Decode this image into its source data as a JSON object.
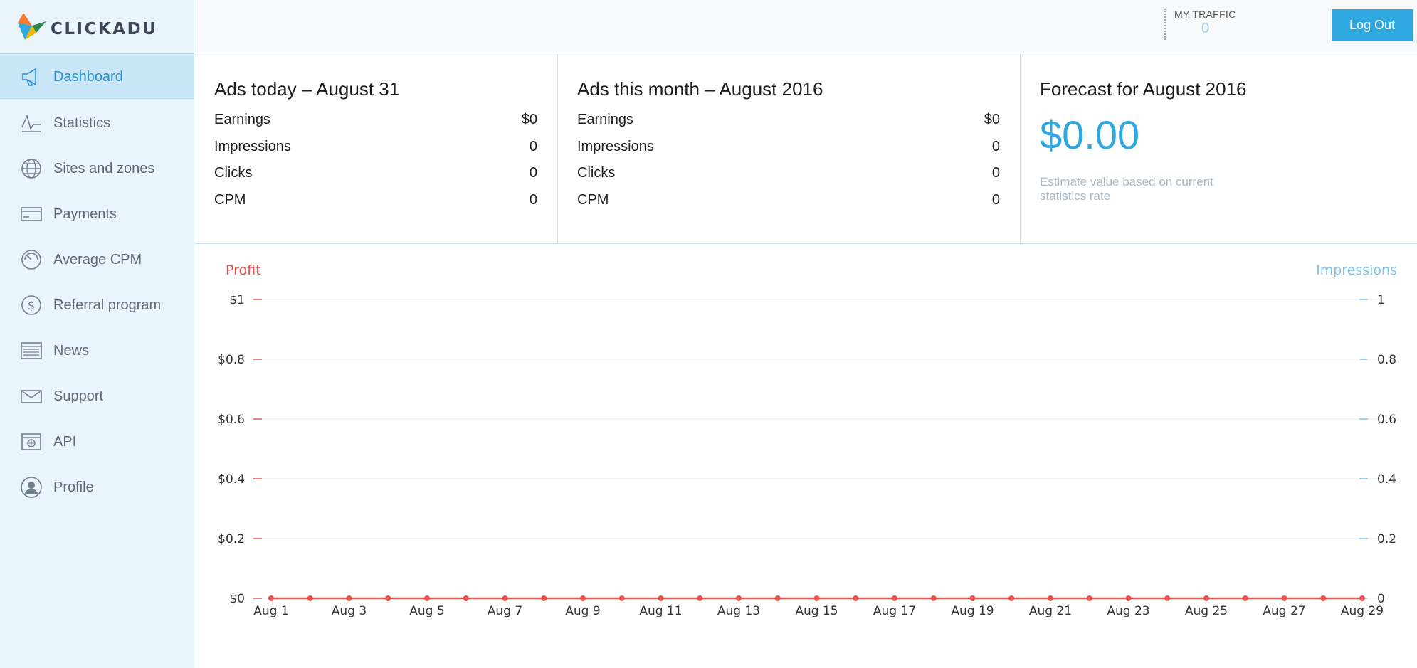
{
  "brand": {
    "name": "CLICKADU"
  },
  "sidebar": {
    "items": [
      {
        "label": "Dashboard",
        "icon": "megaphone-icon",
        "active": true
      },
      {
        "label": "Statistics",
        "icon": "line-chart-icon"
      },
      {
        "label": "Sites and zones",
        "icon": "globe-icon"
      },
      {
        "label": "Payments",
        "icon": "card-icon"
      },
      {
        "label": "Average CPM",
        "icon": "gauge-icon"
      },
      {
        "label": "Referral program",
        "icon": "dollar-icon"
      },
      {
        "label": "News",
        "icon": "news-icon"
      },
      {
        "label": "Support",
        "icon": "envelope-icon"
      },
      {
        "label": "API",
        "icon": "api-icon"
      },
      {
        "label": "Profile",
        "icon": "user-icon"
      }
    ]
  },
  "header": {
    "traffic_label": "MY TRAFFIC",
    "traffic_value": "0",
    "logout_label": "Log Out"
  },
  "today": {
    "title": "Ads today – August 31",
    "rows": [
      {
        "label": "Earnings",
        "value": "$0"
      },
      {
        "label": "Impressions",
        "value": "0"
      },
      {
        "label": "Clicks",
        "value": "0"
      },
      {
        "label": "CPM",
        "value": "0"
      }
    ]
  },
  "month": {
    "title": "Ads this month – August 2016",
    "rows": [
      {
        "label": "Earnings",
        "value": "$0"
      },
      {
        "label": "Impressions",
        "value": "0"
      },
      {
        "label": "Clicks",
        "value": "0"
      },
      {
        "label": "CPM",
        "value": "0"
      }
    ]
  },
  "forecast": {
    "title": "Forecast for August 2016",
    "amount": "$0.00",
    "note": "Estimate value based on current statistics rate"
  },
  "colors": {
    "accent": "#2ea8df",
    "profit": "#e8534f",
    "impressions": "#7fc6e6"
  },
  "chart_data": {
    "type": "line",
    "left_axis_title": "Profit",
    "right_axis_title": "Impressions",
    "left_ticks": [
      "$0",
      "$0.2",
      "$0.4",
      "$0.6",
      "$0.8",
      "$1"
    ],
    "right_ticks": [
      "0",
      "0.2",
      "0.4",
      "0.6",
      "0.8",
      "1"
    ],
    "ylim": [
      0,
      1
    ],
    "x_tick_labels": [
      "Aug 1",
      "Aug 3",
      "Aug 5",
      "Aug 7",
      "Aug 9",
      "Aug 11",
      "Aug 13",
      "Aug 15",
      "Aug 17",
      "Aug 19",
      "Aug 21",
      "Aug 23",
      "Aug 25",
      "Aug 27",
      "Aug 29"
    ],
    "x": [
      "Aug 1",
      "Aug 2",
      "Aug 3",
      "Aug 4",
      "Aug 5",
      "Aug 6",
      "Aug 7",
      "Aug 8",
      "Aug 9",
      "Aug 10",
      "Aug 11",
      "Aug 12",
      "Aug 13",
      "Aug 14",
      "Aug 15",
      "Aug 16",
      "Aug 17",
      "Aug 18",
      "Aug 19",
      "Aug 20",
      "Aug 21",
      "Aug 22",
      "Aug 23",
      "Aug 24",
      "Aug 25",
      "Aug 26",
      "Aug 27",
      "Aug 28",
      "Aug 29"
    ],
    "series": [
      {
        "name": "Profit",
        "axis": "left",
        "values": [
          0,
          0,
          0,
          0,
          0,
          0,
          0,
          0,
          0,
          0,
          0,
          0,
          0,
          0,
          0,
          0,
          0,
          0,
          0,
          0,
          0,
          0,
          0,
          0,
          0,
          0,
          0,
          0,
          0
        ]
      }
    ],
    "grid": true
  }
}
